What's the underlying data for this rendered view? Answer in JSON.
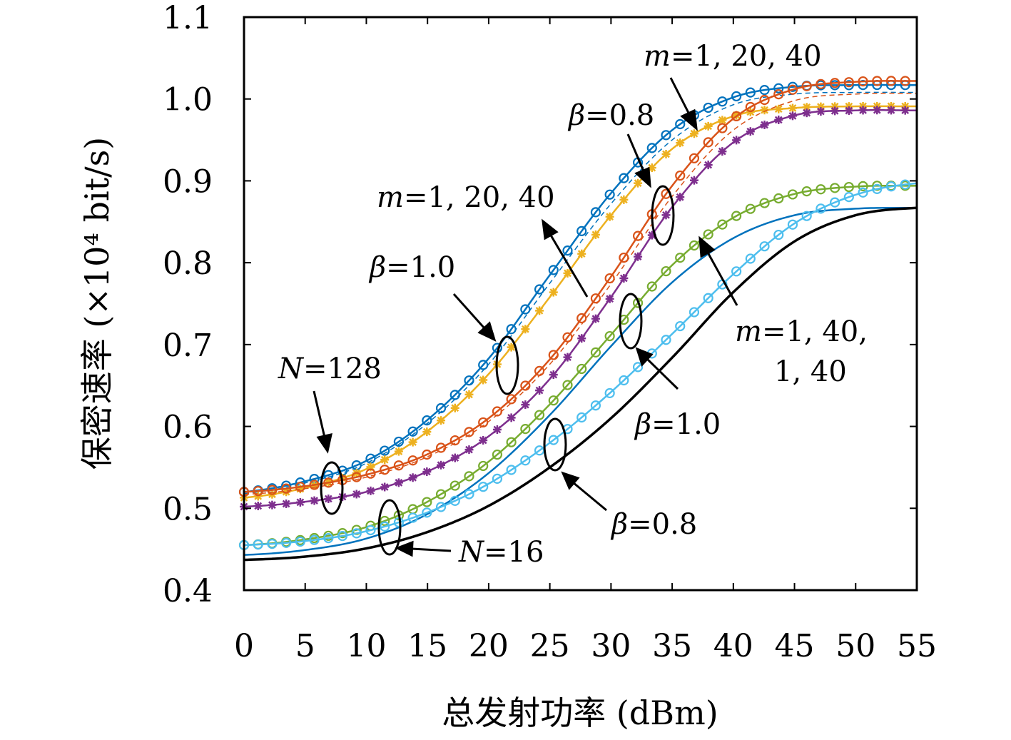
{
  "chart_data": {
    "type": "line",
    "title": "",
    "xlabel": "总发射功率 (dBm)",
    "ylabel": "保密速率 (×10⁴ bit/s)",
    "xlim": [
      0,
      55
    ],
    "ylim": [
      0.4,
      1.1
    ],
    "x_ticks": [
      "0",
      "5",
      "10",
      "15",
      "20",
      "25",
      "30",
      "35",
      "40",
      "45",
      "50",
      "55"
    ],
    "y_ticks": [
      "0.4",
      "0.5",
      "0.6",
      "0.7",
      "0.8",
      "0.9",
      "1.0",
      "1.1"
    ],
    "grid": false,
    "x": [
      0,
      5,
      10,
      15,
      20,
      25,
      30,
      35,
      40,
      45,
      50,
      55
    ],
    "series": [
      {
        "color": "#0072BD",
        "marker": "circle",
        "line": "solid",
        "values": [
          0.52,
          0.533,
          0.558,
          0.608,
          0.683,
          0.785,
          0.885,
          0.962,
          1.002,
          1.015,
          1.017,
          1.017
        ]
      },
      {
        "color": "#0072BD",
        "marker": "none",
        "line": "dashed",
        "values": [
          0.518,
          0.531,
          0.555,
          0.604,
          0.676,
          0.775,
          0.872,
          0.95,
          0.993,
          1.006,
          1.008,
          1.008
        ]
      },
      {
        "color": "#EDB120",
        "marker": "asterisk",
        "line": "solid",
        "values": [
          0.513,
          0.525,
          0.548,
          0.594,
          0.664,
          0.758,
          0.858,
          0.939,
          0.979,
          0.989,
          0.991,
          0.991
        ]
      },
      {
        "color": "#D95319",
        "marker": "circle",
        "line": "solid",
        "values": [
          0.52,
          0.527,
          0.541,
          0.566,
          0.61,
          0.682,
          0.783,
          0.894,
          0.976,
          1.012,
          1.021,
          1.022
        ]
      },
      {
        "color": "#D95319",
        "marker": "none",
        "line": "dashed",
        "values": [
          0.517,
          0.524,
          0.538,
          0.563,
          0.606,
          0.676,
          0.774,
          0.881,
          0.962,
          0.998,
          1.006,
          1.007
        ]
      },
      {
        "color": "#7E2F8E",
        "marker": "asterisk",
        "line": "solid",
        "values": [
          0.502,
          0.508,
          0.52,
          0.545,
          0.588,
          0.658,
          0.758,
          0.868,
          0.947,
          0.98,
          0.986,
          0.986
        ]
      },
      {
        "color": "#77AC30",
        "marker": "circle",
        "line": "solid",
        "values": [
          0.455,
          0.462,
          0.477,
          0.508,
          0.557,
          0.627,
          0.712,
          0.797,
          0.855,
          0.884,
          0.893,
          0.894
        ]
      },
      {
        "color": "#0072BD",
        "marker": "none",
        "line": "solid",
        "values": [
          0.443,
          0.449,
          0.463,
          0.493,
          0.543,
          0.614,
          0.698,
          0.776,
          0.83,
          0.858,
          0.866,
          0.867
        ]
      },
      {
        "color": "#4DBEEE",
        "marker": "circle",
        "line": "solid",
        "values": [
          0.455,
          0.46,
          0.472,
          0.495,
          0.53,
          0.58,
          0.642,
          0.713,
          0.786,
          0.848,
          0.883,
          0.897
        ]
      },
      {
        "color": "#000000",
        "marker": "none",
        "line": "solid",
        "values": [
          0.437,
          0.441,
          0.451,
          0.471,
          0.503,
          0.55,
          0.61,
          0.684,
          0.764,
          0.826,
          0.858,
          0.867
        ]
      }
    ],
    "annotations": [
      {
        "id": "a1",
        "prefix": "m",
        "text": "=1, 20, 40"
      },
      {
        "id": "a2",
        "prefix": "β",
        "text": "=0.8"
      },
      {
        "id": "a3",
        "prefix": "m",
        "text": "=1, 20, 40"
      },
      {
        "id": "a4",
        "prefix": "β",
        "text": "=1.0"
      },
      {
        "id": "a5",
        "prefix": "N",
        "text": "=128"
      },
      {
        "id": "a6",
        "prefix": "m",
        "text": "=1, 40,"
      },
      {
        "id": "a6b",
        "prefix": "",
        "text": "1, 40"
      },
      {
        "id": "a7",
        "prefix": "β",
        "text": "=1.0"
      },
      {
        "id": "a8",
        "prefix": "β",
        "text": "=0.8"
      },
      {
        "id": "a9",
        "prefix": "N",
        "text": "=16"
      }
    ]
  }
}
